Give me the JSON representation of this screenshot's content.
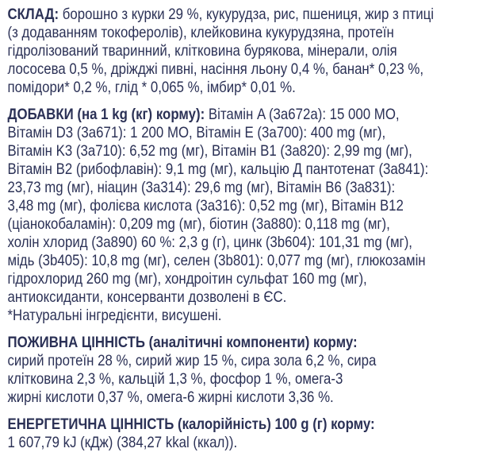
{
  "colors": {
    "text": "#2b3156",
    "background": "#ffffff"
  },
  "sections": {
    "sklad": {
      "lead": "СКЛАД:",
      "line1_rest": " борошно з курки 29 %, кукурудза, рис, пшениця, жир з птиці",
      "lines": [
        "(з додаванням токоферолів), клейковина кукурудзяна, протеїн",
        "гідролізований тваринний, клітковина бурякова, мінерали, олія",
        "лососева 0,5 %, дріжджі пивні, насіння льону 0,4 %, банан* 0,23 %,",
        "помідори* 0,2 %, глід * 0,065 %, імбир* 0,01 %."
      ]
    },
    "dobavky": {
      "lead": "ДОБАВКИ (на 1 kg (кг) корму):",
      "line1_rest": " Вітамін A (3а672а): 15 000 МО,",
      "lines": [
        "Вітамін D3 (3а671): 1 200 МО, Вітамін E (3а700): 400 mg (мг),",
        "Вітамін K3 (3а710): 6,52 mg (мг), Вітамін B1 (3а820): 2,99 mg (мг),",
        "Вітамін B2 (рибофлавін): 9,1 mg (мг), кальцію Д пантотенат (3а841):",
        "23,73 mg (мг), ніацин (3а314): 29,6 mg (мг), Вітамін B6 (3а831):",
        "3,48 mg (мг), фолієва кислота (3а316): 0,52 mg (мг), Вітамін B12",
        "(ціанокобаламін): 0,209 mg (мг), біотин (3а880): 0,118 mg (мг),",
        "холін хлорид (3а890) 60 %: 2,3 g (г), цинк (3b604): 101,31 mg (мг),",
        "мідь (3b405): 10,8 mg (мг), селен (3b801): 0,077 mg (мг), глюкозамін",
        "гідрохлорид 260 mg (мг), хондроітин сульфат 160 mg (мг),",
        "антиоксиданти, консерванти дозволені в ЄС."
      ],
      "note": "*Натуральні інгредієнти, висушені."
    },
    "pozhyvna": {
      "heading": "ПОЖИВНА ЦІННІСТЬ (аналітичні компоненти) корму:",
      "lines": [
        "сирий протеїн 28 %, сирий жир 15 %, сира зола 6,2 %, сира",
        "клітковина 2,3 %, кальцій 1,3 %, фосфор 1 %, омега-3",
        "жирні кислоти 0,37 %, омега-6 жирні кислоти 3,36 %."
      ]
    },
    "energetychna": {
      "heading": "ЕНЕРГЕТИЧНА ЦІННІСТЬ (калорійність) 100 g (г) корму:",
      "lines": [
        "1 607,79 kJ (кДж) (384,27 kkal (ккал))."
      ]
    }
  }
}
